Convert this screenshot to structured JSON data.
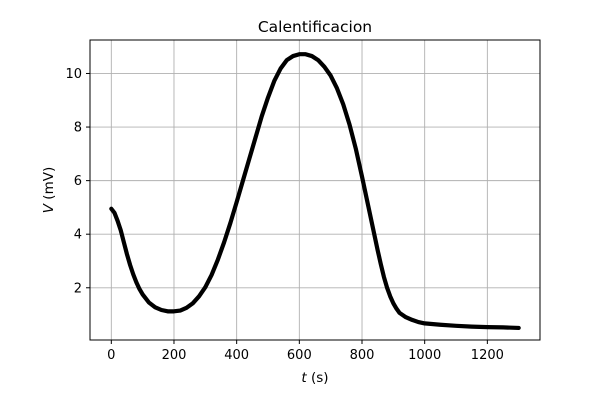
{
  "chart_data": {
    "type": "line",
    "title": "Calentificacion",
    "xlabel_var": "t",
    "xlabel_unit": " (s)",
    "ylabel_var": "V",
    "ylabel_unit": " (mV)",
    "xlim": [
      -68,
      1368
    ],
    "ylim": [
      0.05,
      11.25
    ],
    "grid": true,
    "x_ticks": [
      {
        "value": 0,
        "label": "0"
      },
      {
        "value": 200,
        "label": "200"
      },
      {
        "value": 400,
        "label": "400"
      },
      {
        "value": 600,
        "label": "600"
      },
      {
        "value": 800,
        "label": "800"
      },
      {
        "value": 1000,
        "label": "1000"
      },
      {
        "value": 1200,
        "label": "1200"
      }
    ],
    "y_ticks": [
      {
        "value": 2,
        "label": "2"
      },
      {
        "value": 4,
        "label": "4"
      },
      {
        "value": 6,
        "label": "6"
      },
      {
        "value": 8,
        "label": "8"
      },
      {
        "value": 10,
        "label": "10"
      }
    ],
    "series": [
      {
        "color": "#000000",
        "x": [
          0,
          10,
          20,
          30,
          40,
          50,
          60,
          70,
          80,
          90,
          100,
          120,
          140,
          160,
          180,
          200,
          220,
          240,
          260,
          280,
          300,
          320,
          340,
          360,
          380,
          400,
          420,
          440,
          460,
          480,
          500,
          520,
          540,
          560,
          580,
          600,
          620,
          640,
          660,
          680,
          700,
          720,
          740,
          760,
          780,
          800,
          820,
          840,
          850,
          860,
          870,
          880,
          890,
          900,
          910,
          920,
          940,
          960,
          980,
          1000,
          1050,
          1100,
          1150,
          1200,
          1250,
          1300
        ],
        "y": [
          4.95,
          4.8,
          4.5,
          4.15,
          3.7,
          3.25,
          2.85,
          2.5,
          2.2,
          1.95,
          1.75,
          1.45,
          1.27,
          1.17,
          1.12,
          1.12,
          1.15,
          1.25,
          1.42,
          1.68,
          2.02,
          2.48,
          3.05,
          3.7,
          4.42,
          5.2,
          6.0,
          6.8,
          7.6,
          8.4,
          9.1,
          9.72,
          10.18,
          10.5,
          10.65,
          10.72,
          10.72,
          10.65,
          10.5,
          10.25,
          9.92,
          9.45,
          8.85,
          8.1,
          7.2,
          6.15,
          5.05,
          3.95,
          3.4,
          2.88,
          2.4,
          2.0,
          1.68,
          1.42,
          1.22,
          1.06,
          0.9,
          0.8,
          0.72,
          0.67,
          0.62,
          0.58,
          0.55,
          0.53,
          0.52,
          0.5
        ]
      }
    ]
  }
}
